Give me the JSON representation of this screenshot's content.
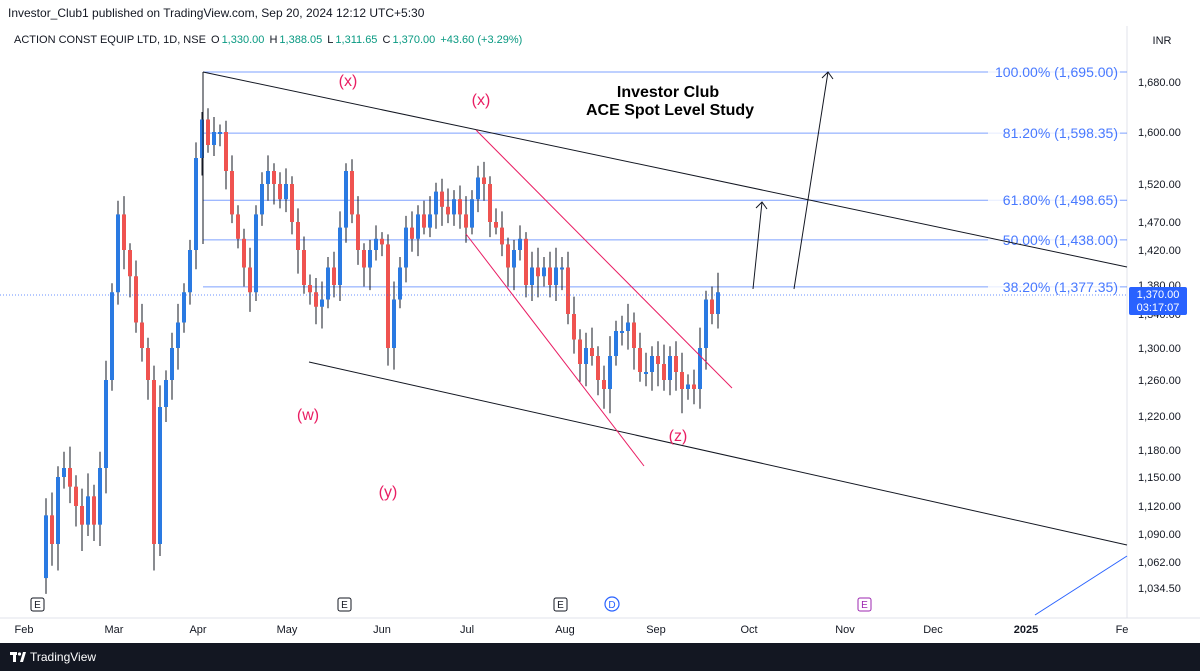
{
  "header": {
    "publisher": "Investor_Club1 published on TradingView.com, Sep 20, 2024 12:12 UTC+5:30"
  },
  "legend": {
    "symbol": "ACTION CONST EQUIP LTD, 1D, NSE",
    "o_key": "O",
    "o_val": "1,330.00",
    "h_key": "H",
    "h_val": "1,388.05",
    "l_key": "L",
    "l_val": "1,311.65",
    "c_key": "C",
    "c_val": "1,370.00",
    "change": "+43.60 (+3.29%)"
  },
  "currency": "INR",
  "footer": {
    "brand": "TradingView"
  },
  "colors": {
    "up": "#2a7ae2",
    "down": "#ef5350",
    "level": "#2962ff",
    "wave": "#e91e63",
    "channel": "#000000",
    "current": "#2962ff"
  },
  "chart_data": {
    "type": "candlestick",
    "title": "Investor Club",
    "subtitle": "ACE Spot Level Study",
    "x_labels": [
      "Feb",
      "Mar",
      "Apr",
      "May",
      "Jun",
      "Jul",
      "Aug",
      "Sep",
      "Oct",
      "Nov",
      "Dec",
      "2025",
      "Fe"
    ],
    "y_ticks": [
      "1,680.00",
      "1,600.00",
      "1,520.00",
      "1,470.00",
      "1,420.00",
      "1,380.00",
      "1,340.00",
      "1,300.00",
      "1,260.00",
      "1,220.00",
      "1,180.00",
      "1,150.00",
      "1,120.00",
      "1,090.00",
      "1,062.00",
      "1,034.50"
    ],
    "current_price": "1,370.00",
    "countdown": "03:17:07",
    "fib_levels": [
      {
        "label": "100.00% (1,695.00)",
        "price": 1695.0
      },
      {
        "label": "81.20% (1,598.35)",
        "price": 1598.35
      },
      {
        "label": "61.80% (1,498.65)",
        "price": 1498.65
      },
      {
        "label": "50.00% (1,438.00)",
        "price": 1438.0
      },
      {
        "label": "38.20% (1,377.35)",
        "price": 1377.35
      }
    ],
    "wave_labels": [
      "(x)",
      "(x)",
      "(w)",
      "(y)",
      "(z)"
    ],
    "events": [
      "E",
      "E",
      "E",
      "D",
      "E"
    ],
    "grid": false,
    "legend": "top-left"
  }
}
